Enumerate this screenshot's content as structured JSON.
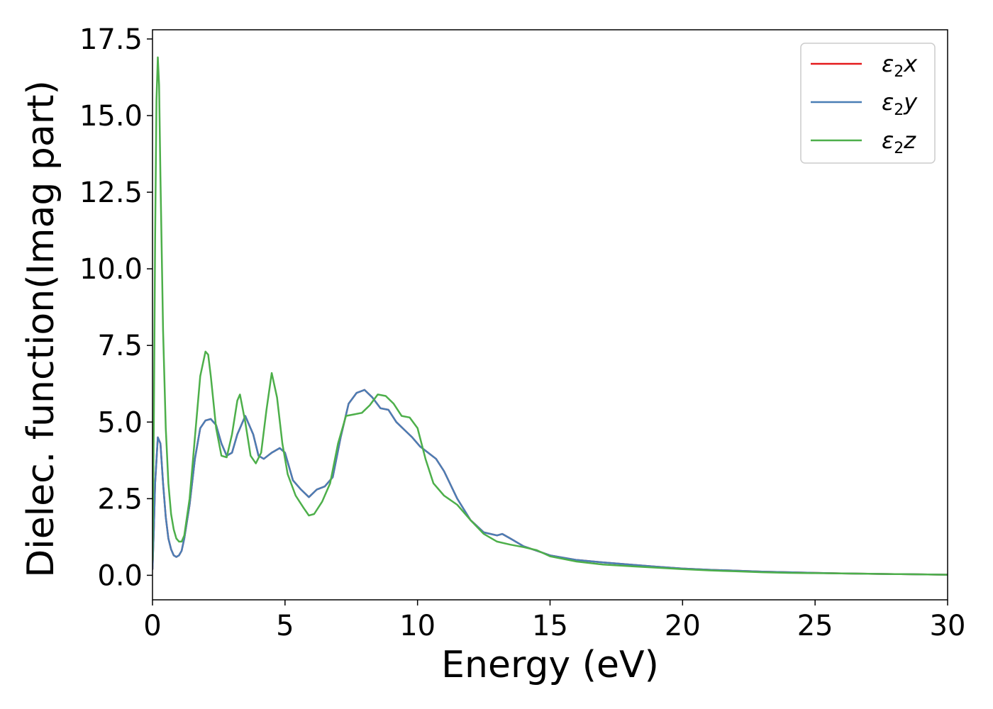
{
  "chart_data": {
    "type": "line",
    "xlabel": "Energy (eV)",
    "ylabel": "Dielec. function(Imag part)",
    "xlim": [
      0,
      30
    ],
    "ylim": [
      -0.8,
      17.8
    ],
    "xticks": [
      "0",
      "5",
      "10",
      "15",
      "20",
      "25",
      "30"
    ],
    "yticks": [
      "0.0",
      "2.5",
      "5.0",
      "7.5",
      "10.0",
      "12.5",
      "15.0",
      "17.5"
    ],
    "grid": false,
    "legend_position": "top-right",
    "series": [
      {
        "name": "ε2x",
        "legend": {
          "base": "ε",
          "sub": "2",
          "suffix": "x"
        },
        "color": "#e41a1c",
        "x": [
          0,
          0.05,
          0.1,
          0.2,
          0.3,
          0.4,
          0.5,
          0.6,
          0.7,
          0.8,
          0.9,
          1.0,
          1.1,
          1.2,
          1.4,
          1.6,
          1.8,
          2.0,
          2.2,
          2.4,
          2.6,
          2.8,
          3.0,
          3.2,
          3.5,
          3.8,
          4.0,
          4.2,
          4.5,
          4.8,
          5.0,
          5.3,
          5.6,
          5.9,
          6.2,
          6.5,
          6.8,
          7.1,
          7.4,
          7.7,
          8.0,
          8.3,
          8.6,
          8.9,
          9.2,
          9.5,
          9.8,
          10.1,
          10.4,
          10.7,
          11.0,
          11.5,
          12.0,
          12.5,
          13.0,
          13.2,
          13.5,
          14.0,
          14.5,
          15.0,
          16.0,
          17.0,
          18.0,
          19.0,
          20.0,
          21.0,
          22.0,
          23.0,
          24.0,
          25.0,
          26.0,
          27.0,
          28.0,
          29.0,
          30.0
        ],
        "y": [
          0.2,
          1.5,
          3.0,
          4.5,
          4.3,
          3.0,
          1.9,
          1.2,
          0.85,
          0.65,
          0.6,
          0.65,
          0.8,
          1.2,
          2.3,
          3.8,
          4.8,
          5.05,
          5.1,
          4.9,
          4.3,
          3.9,
          4.0,
          4.6,
          5.2,
          4.6,
          3.9,
          3.8,
          4.0,
          4.15,
          4.0,
          3.1,
          2.8,
          2.55,
          2.8,
          2.9,
          3.2,
          4.5,
          5.6,
          5.95,
          6.05,
          5.8,
          5.45,
          5.4,
          5.0,
          4.75,
          4.5,
          4.2,
          4.0,
          3.8,
          3.4,
          2.5,
          1.8,
          1.4,
          1.3,
          1.35,
          1.2,
          0.95,
          0.8,
          0.65,
          0.5,
          0.42,
          0.35,
          0.28,
          0.22,
          0.18,
          0.15,
          0.12,
          0.1,
          0.08,
          0.06,
          0.05,
          0.04,
          0.03,
          0.02
        ]
      },
      {
        "name": "ε2y",
        "legend": {
          "base": "ε",
          "sub": "2",
          "suffix": "y"
        },
        "color": "#4a7eb5",
        "x": [
          0,
          0.05,
          0.1,
          0.2,
          0.3,
          0.4,
          0.5,
          0.6,
          0.7,
          0.8,
          0.9,
          1.0,
          1.1,
          1.2,
          1.4,
          1.6,
          1.8,
          2.0,
          2.2,
          2.4,
          2.6,
          2.8,
          3.0,
          3.2,
          3.5,
          3.8,
          4.0,
          4.2,
          4.5,
          4.8,
          5.0,
          5.3,
          5.6,
          5.9,
          6.2,
          6.5,
          6.8,
          7.1,
          7.4,
          7.7,
          8.0,
          8.3,
          8.6,
          8.9,
          9.2,
          9.5,
          9.8,
          10.1,
          10.4,
          10.7,
          11.0,
          11.5,
          12.0,
          12.5,
          13.0,
          13.2,
          13.5,
          14.0,
          14.5,
          15.0,
          16.0,
          17.0,
          18.0,
          19.0,
          20.0,
          21.0,
          22.0,
          23.0,
          24.0,
          25.0,
          26.0,
          27.0,
          28.0,
          29.0,
          30.0
        ],
        "y": [
          0.2,
          1.5,
          3.0,
          4.5,
          4.3,
          3.0,
          1.9,
          1.2,
          0.85,
          0.65,
          0.6,
          0.65,
          0.8,
          1.2,
          2.3,
          3.8,
          4.8,
          5.05,
          5.1,
          4.9,
          4.3,
          3.9,
          4.0,
          4.6,
          5.2,
          4.6,
          3.9,
          3.8,
          4.0,
          4.15,
          4.0,
          3.1,
          2.8,
          2.55,
          2.8,
          2.9,
          3.2,
          4.5,
          5.6,
          5.95,
          6.05,
          5.8,
          5.45,
          5.4,
          5.0,
          4.75,
          4.5,
          4.2,
          4.0,
          3.8,
          3.4,
          2.5,
          1.8,
          1.4,
          1.3,
          1.35,
          1.2,
          0.95,
          0.8,
          0.65,
          0.5,
          0.42,
          0.35,
          0.28,
          0.22,
          0.18,
          0.15,
          0.12,
          0.1,
          0.08,
          0.06,
          0.05,
          0.04,
          0.03,
          0.02
        ]
      },
      {
        "name": "ε2z",
        "legend": {
          "base": "ε",
          "sub": "2",
          "suffix": "z"
        },
        "color": "#4daf4a",
        "x": [
          0,
          0.05,
          0.1,
          0.15,
          0.2,
          0.25,
          0.3,
          0.4,
          0.5,
          0.6,
          0.7,
          0.8,
          0.9,
          1.0,
          1.1,
          1.2,
          1.4,
          1.6,
          1.8,
          2.0,
          2.1,
          2.2,
          2.4,
          2.6,
          2.8,
          3.0,
          3.2,
          3.3,
          3.5,
          3.7,
          3.9,
          4.1,
          4.3,
          4.5,
          4.7,
          4.9,
          5.1,
          5.4,
          5.7,
          5.9,
          6.1,
          6.4,
          6.7,
          7.0,
          7.3,
          7.6,
          7.9,
          8.2,
          8.5,
          8.8,
          9.1,
          9.4,
          9.7,
          10.0,
          10.3,
          10.6,
          11.0,
          11.5,
          12.0,
          12.5,
          13.0,
          13.5,
          14.0,
          14.5,
          15.0,
          16.0,
          17.0,
          18.0,
          19.0,
          20.0,
          21.0,
          22.0,
          23.0,
          24.0,
          25.0,
          26.0,
          27.0,
          28.0,
          29.0,
          30.0
        ],
        "y": [
          0.5,
          5.0,
          11.0,
          15.5,
          16.9,
          16.0,
          13.0,
          8.0,
          4.8,
          3.0,
          2.0,
          1.5,
          1.2,
          1.1,
          1.1,
          1.3,
          2.5,
          4.5,
          6.5,
          7.3,
          7.2,
          6.5,
          4.8,
          3.9,
          3.85,
          4.6,
          5.7,
          5.9,
          5.0,
          3.9,
          3.65,
          4.0,
          5.4,
          6.6,
          5.8,
          4.3,
          3.3,
          2.6,
          2.2,
          1.95,
          2.0,
          2.4,
          3.0,
          4.3,
          5.2,
          5.25,
          5.3,
          5.55,
          5.9,
          5.85,
          5.6,
          5.2,
          5.15,
          4.8,
          3.8,
          3.0,
          2.6,
          2.3,
          1.8,
          1.35,
          1.1,
          1.0,
          0.92,
          0.82,
          0.62,
          0.45,
          0.35,
          0.3,
          0.25,
          0.2,
          0.16,
          0.13,
          0.1,
          0.08,
          0.07,
          0.06,
          0.05,
          0.04,
          0.03,
          0.02
        ]
      }
    ]
  }
}
